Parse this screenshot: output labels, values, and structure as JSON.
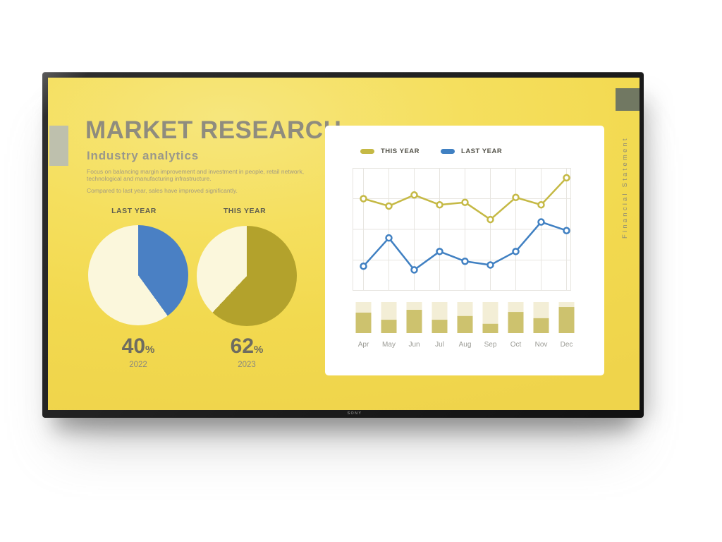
{
  "device": {
    "brand_logo": "SONY"
  },
  "slide": {
    "title": "MARKET RESEARCH",
    "subtitle": "Industry analytics",
    "paragraphs": [
      "Focus on balancing margin improvement and investment in people, retail network, technological and manufacturing infrastructure.",
      "Compared to last year, sales have improved significantly."
    ],
    "side_label": "Financial Statement"
  },
  "colors": {
    "screen_yellow": "#f2d94f",
    "accent_gray": "#b9bdb3",
    "accent_olive_gray": "#717862",
    "title_gray": "#8f8c7e"
  },
  "chart_data": [
    {
      "type": "pie",
      "title": "LAST YEAR",
      "caption": "2022",
      "big_number": "40",
      "suffix": "%",
      "labels": [
        "highlighted share",
        "remainder"
      ],
      "values": [
        40,
        60
      ],
      "colors": [
        "#4a80c4",
        "#fbf7dc"
      ],
      "start_angle_deg": 0,
      "direction": "clockwise"
    },
    {
      "type": "pie",
      "title": "THIS YEAR",
      "caption": "2023",
      "big_number": "62",
      "suffix": "%",
      "labels": [
        "highlighted share",
        "remainder"
      ],
      "values": [
        62,
        38
      ],
      "colors": [
        "#b3a22c",
        "#fbf7dc"
      ],
      "start_angle_deg": 0,
      "direction": "clockwise"
    },
    {
      "type": "line",
      "x": [
        "Apr",
        "May",
        "Jun",
        "Jul",
        "Aug",
        "Sep",
        "Oct",
        "Nov",
        "Dec"
      ],
      "series": [
        {
          "name": "THIS YEAR",
          "color": "#c5b945",
          "values": [
            75,
            69,
            78,
            70,
            72,
            58,
            76,
            70,
            92
          ]
        },
        {
          "name": "LAST YEAR",
          "color": "#4080c2",
          "values": [
            20,
            43,
            17,
            32,
            24,
            21,
            32,
            56,
            49
          ]
        }
      ],
      "ylim": [
        0,
        100
      ],
      "grid": true,
      "grid_color": "#e7e5e0",
      "legend_position": "top",
      "markers": "open-circle"
    },
    {
      "type": "bar",
      "categories": [
        "Apr",
        "May",
        "Jun",
        "Jul",
        "Aug",
        "Sep",
        "Oct",
        "Nov",
        "Dec"
      ],
      "values": [
        66,
        43,
        75,
        43,
        55,
        30,
        68,
        48,
        84
      ],
      "ylim": [
        0,
        100
      ],
      "bar_color": "#cdc26e",
      "track_color": "#f3eed6",
      "label_color": "#9b9b95",
      "note": "filled share of full-height track bars under the line chart"
    }
  ]
}
